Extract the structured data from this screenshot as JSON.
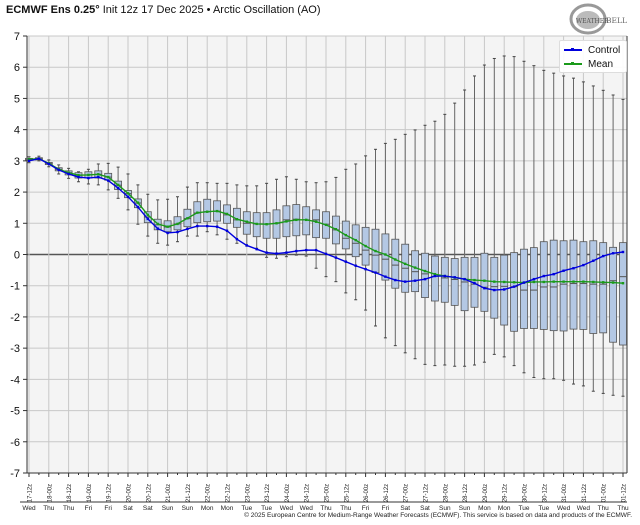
{
  "header": {
    "title_bold": "ECMWF Ens 0.25°",
    "title_rest": " Init 12z 17 Dec 2025 • Arctic Oscillation (AO)",
    "logo_text": "WeatherBELL"
  },
  "footer": {
    "copyright": "© 2025 European Centre for Medium-Range Weather Forecasts (ECMWF). This service is based on data and products of the ECMWF."
  },
  "colors": {
    "control": "#0000dd",
    "mean": "#1a9a1a",
    "box_fill": "#b4c8e4",
    "box_stroke": "#555555",
    "plot_bg": "#f4f4f4",
    "grid": "#c8c8c8",
    "zero_line": "#555555"
  },
  "chart_data": {
    "type": "boxplot-with-lines",
    "title": "ECMWF Ens 0.25° Init 12z 17 Dec 2025 • Arctic Oscillation (AO)",
    "ylim": [
      -7,
      7
    ],
    "yticks": [
      7,
      6,
      5,
      4,
      3,
      2,
      1,
      0,
      -1,
      -2,
      -3,
      -4,
      -5,
      -6,
      -7
    ],
    "grid": true,
    "legend_position": "top-right",
    "time_step_hours": 6,
    "x_tick_labels": [
      "17-12z",
      "18-00z",
      "18-12z",
      "19-00z",
      "19-12z",
      "20-00z",
      "20-12z",
      "21-00z",
      "21-12z",
      "22-00z",
      "22-12z",
      "23-00z",
      "23-12z",
      "24-00z",
      "24-12z",
      "25-00z",
      "25-12z",
      "26-00z",
      "26-12z",
      "27-00z",
      "27-12z",
      "28-00z",
      "28-12z",
      "29-00z",
      "29-12z",
      "30-00z",
      "30-12z",
      "31-00z",
      "31-12z",
      "01-00z",
      "01-12z"
    ],
    "x_day_labels": [
      "Wed",
      "Thu",
      "Thu",
      "Fri",
      "Fri",
      "Sat",
      "Sat",
      "Sun",
      "Sun",
      "Mon",
      "Mon",
      "Tue",
      "Tue",
      "Wed",
      "Wed",
      "Thu",
      "Thu",
      "Fri",
      "Fri",
      "Sat",
      "Sat",
      "Sun",
      "Sun",
      "Mon",
      "Mon",
      "Tue",
      "Tue",
      "Wed",
      "Wed",
      "Thu",
      "Thu"
    ],
    "series": [
      {
        "name": "Control",
        "values": [
          3.0,
          3.07,
          2.9,
          2.71,
          2.58,
          2.48,
          2.45,
          2.48,
          2.37,
          2.13,
          1.85,
          1.52,
          1.14,
          0.83,
          0.69,
          0.72,
          0.82,
          0.91,
          0.91,
          0.89,
          0.76,
          0.49,
          0.29,
          0.17,
          0.06,
          0.03,
          0.06,
          0.11,
          0.14,
          0.14,
          0.02,
          -0.1,
          -0.23,
          -0.36,
          -0.47,
          -0.58,
          -0.71,
          -0.82,
          -0.87,
          -0.84,
          -0.79,
          -0.69,
          -0.69,
          -0.73,
          -0.79,
          -0.92,
          -1.08,
          -1.14,
          -1.12,
          -1.03,
          -0.9,
          -0.79,
          -0.69,
          -0.63,
          -0.52,
          -0.44,
          -0.34,
          -0.2,
          -0.05,
          0.04,
          0.08
        ]
      },
      {
        "name": "Mean",
        "values": [
          3.05,
          3.07,
          2.92,
          2.73,
          2.62,
          2.54,
          2.55,
          2.57,
          2.48,
          2.23,
          1.96,
          1.66,
          1.27,
          0.98,
          0.89,
          0.98,
          1.16,
          1.34,
          1.37,
          1.39,
          1.3,
          1.13,
          1.05,
          0.98,
          0.97,
          1.0,
          1.06,
          1.11,
          1.11,
          1.05,
          0.95,
          0.81,
          0.62,
          0.46,
          0.27,
          0.11,
          0.0,
          -0.16,
          -0.3,
          -0.42,
          -0.53,
          -0.63,
          -0.69,
          -0.74,
          -0.79,
          -0.82,
          -0.84,
          -0.87,
          -0.88,
          -0.89,
          -0.9,
          -0.88,
          -0.88,
          -0.87,
          -0.87,
          -0.87,
          -0.87,
          -0.88,
          -0.89,
          -0.9,
          -0.92
        ]
      }
    ],
    "boxes": {
      "max": [
        3.13,
        3.15,
        3.03,
        2.87,
        2.76,
        2.65,
        2.73,
        2.9,
        2.92,
        2.8,
        2.58,
        2.23,
        1.93,
        1.75,
        1.77,
        1.85,
        2.16,
        2.3,
        2.3,
        2.28,
        2.28,
        2.23,
        2.2,
        2.2,
        2.28,
        2.41,
        2.49,
        2.41,
        2.33,
        2.3,
        2.33,
        2.47,
        2.73,
        2.9,
        3.16,
        3.37,
        3.56,
        3.69,
        3.85,
        3.99,
        4.14,
        4.27,
        4.49,
        4.85,
        5.27,
        5.72,
        6.07,
        6.28,
        6.36,
        6.34,
        6.19,
        6.05,
        5.9,
        5.81,
        5.72,
        5.65,
        5.53,
        5.4,
        5.26,
        5.11,
        4.97
      ],
      "q3": [
        3.08,
        3.1,
        2.95,
        2.78,
        2.68,
        2.62,
        2.65,
        2.68,
        2.6,
        2.35,
        2.05,
        1.78,
        1.37,
        1.13,
        1.08,
        1.21,
        1.45,
        1.69,
        1.77,
        1.72,
        1.59,
        1.48,
        1.37,
        1.34,
        1.34,
        1.43,
        1.56,
        1.6,
        1.53,
        1.43,
        1.37,
        1.23,
        1.07,
        0.95,
        0.87,
        0.81,
        0.66,
        0.49,
        0.33,
        0.12,
        0.04,
        -0.05,
        -0.09,
        -0.13,
        -0.09,
        -0.09,
        0.04,
        -0.09,
        -0.02,
        0.06,
        0.17,
        0.22,
        0.41,
        0.46,
        0.44,
        0.46,
        0.41,
        0.44,
        0.38,
        0.23,
        0.38
      ],
      "median": [
        3.05,
        3.07,
        2.92,
        2.73,
        2.62,
        2.54,
        2.55,
        2.57,
        2.48,
        2.22,
        1.95,
        1.65,
        1.2,
        0.95,
        0.88,
        0.98,
        1.15,
        1.33,
        1.37,
        1.39,
        1.27,
        1.11,
        1.0,
        0.98,
        0.98,
        1.0,
        1.11,
        1.13,
        1.11,
        1.11,
        0.97,
        0.79,
        0.52,
        0.36,
        0.14,
        -0.02,
        -0.15,
        -0.34,
        -0.44,
        -0.55,
        -0.62,
        -0.7,
        -0.75,
        -0.8,
        -0.88,
        -0.95,
        -1.05,
        -1.03,
        -1.02,
        -1.03,
        -1.14,
        -1.14,
        -1.04,
        -1.04,
        -0.95,
        -0.93,
        -0.93,
        -0.95,
        -0.95,
        -0.84,
        -0.71
      ],
      "q1": [
        3.02,
        3.03,
        2.88,
        2.68,
        2.55,
        2.45,
        2.45,
        2.45,
        2.38,
        2.08,
        1.82,
        1.5,
        1.02,
        0.79,
        0.73,
        0.79,
        0.89,
        1.02,
        1.05,
        1.07,
        1.0,
        0.87,
        0.65,
        0.57,
        0.52,
        0.52,
        0.57,
        0.6,
        0.63,
        0.54,
        0.52,
        0.34,
        0.18,
        -0.07,
        -0.34,
        -0.58,
        -0.82,
        -1.08,
        -1.21,
        -1.19,
        -1.38,
        -1.49,
        -1.53,
        -1.63,
        -1.8,
        -1.69,
        -1.82,
        -2.04,
        -2.26,
        -2.46,
        -2.37,
        -2.37,
        -2.4,
        -2.44,
        -2.45,
        -2.39,
        -2.4,
        -2.53,
        -2.51,
        -2.81,
        -2.9
      ],
      "min": [
        2.94,
        3.0,
        2.81,
        2.58,
        2.44,
        2.33,
        2.26,
        2.23,
        2.07,
        1.8,
        1.43,
        0.97,
        0.59,
        0.36,
        0.3,
        0.41,
        0.59,
        0.59,
        0.73,
        0.63,
        0.49,
        0.36,
        0.27,
        0.2,
        -0.09,
        -0.12,
        -0.07,
        -0.02,
        -0.05,
        -0.44,
        -0.71,
        -0.87,
        -1.23,
        -1.45,
        -1.78,
        -2.29,
        -2.67,
        -2.92,
        -3.15,
        -3.34,
        -3.52,
        -3.56,
        -3.54,
        -3.58,
        -3.58,
        -3.54,
        -3.45,
        -3.2,
        -3.28,
        -3.56,
        -3.79,
        -3.94,
        -3.98,
        -3.98,
        -4.03,
        -4.15,
        -4.21,
        -4.38,
        -4.45,
        -4.51,
        -4.54
      ]
    }
  }
}
